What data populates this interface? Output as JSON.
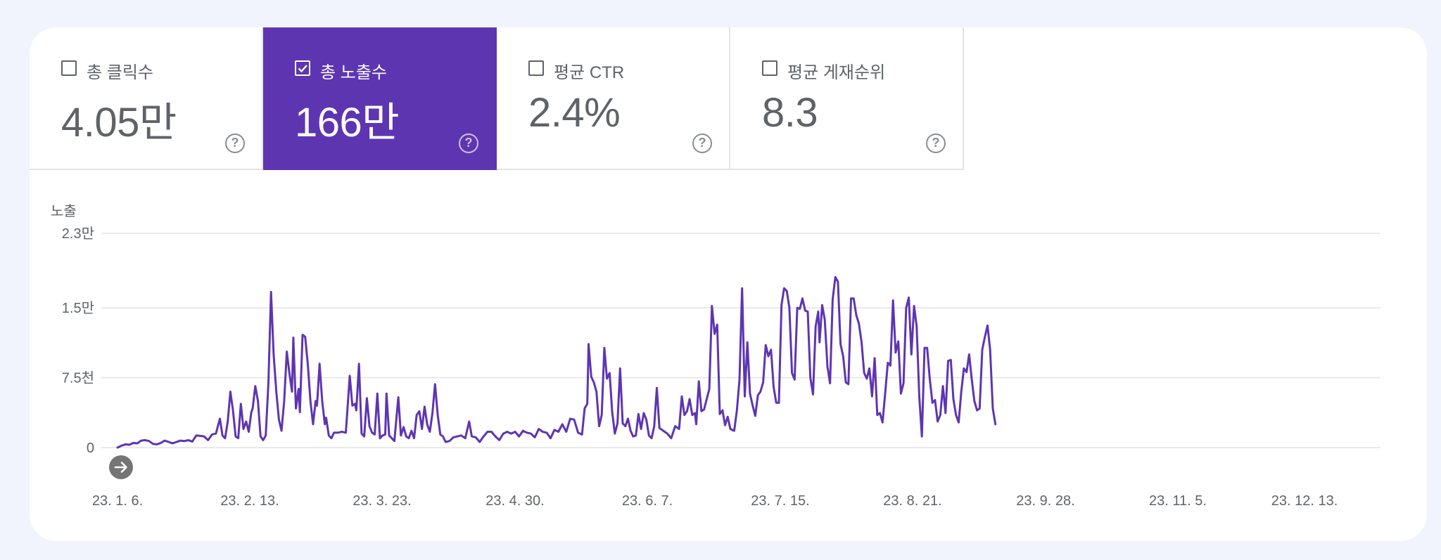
{
  "metrics": [
    {
      "label": "총 클릭수",
      "value": "4.05만",
      "checked": false
    },
    {
      "label": "총 노출수",
      "value": "166만",
      "checked": true
    },
    {
      "label": "평균 CTR",
      "value": "2.4%",
      "checked": false
    },
    {
      "label": "평균 게재순위",
      "value": "8.3",
      "checked": false
    }
  ],
  "help_glyph": "?",
  "colors": {
    "accent": "#5e35b1",
    "line": "#5e35b1",
    "background": "#f1f4fd"
  },
  "icons": {
    "checkbox_checked": "checkbox-checked-icon",
    "checkbox_unchecked": "checkbox-unchecked-icon",
    "help": "help-circle-icon",
    "navigate": "arrow-right-circle-icon"
  },
  "chart_data": {
    "type": "line",
    "ylabel": "노출",
    "ylim": [
      0,
      23000
    ],
    "yticks": [
      {
        "value": 0,
        "label": "0"
      },
      {
        "value": 7500,
        "label": "7.5천"
      },
      {
        "value": 15000,
        "label": "1.5만"
      },
      {
        "value": 23000,
        "label": "2.3만"
      }
    ],
    "xticks": [
      "23. 1. 6.",
      "23. 2. 13.",
      "23. 3. 23.",
      "23. 4. 30.",
      "23. 6. 7.",
      "23. 7. 15.",
      "23. 8. 21.",
      "23. 9. 28.",
      "23. 11. 5.",
      "23. 12. 13."
    ],
    "grid": true,
    "series": [
      {
        "points": [
          [
            0,
            0
          ],
          [
            3,
            200
          ],
          [
            6,
            350
          ],
          [
            9,
            300
          ],
          [
            12,
            500
          ],
          [
            15,
            450
          ],
          [
            18,
            750
          ],
          [
            21,
            800
          ],
          [
            24,
            700
          ],
          [
            27,
            400
          ],
          [
            30,
            350
          ],
          [
            33,
            500
          ],
          [
            36,
            750
          ],
          [
            39,
            600
          ],
          [
            42,
            450
          ],
          [
            45,
            600
          ],
          [
            48,
            750
          ],
          [
            51,
            700
          ],
          [
            54,
            800
          ],
          [
            57,
            650
          ],
          [
            60,
            1300
          ],
          [
            63,
            1250
          ],
          [
            66,
            1200
          ],
          [
            69,
            800
          ],
          [
            72,
            1400
          ],
          [
            75,
            1500
          ],
          [
            78,
            3100
          ],
          [
            80,
            1300
          ],
          [
            82,
            1000
          ],
          [
            84,
            2800
          ],
          [
            86,
            6000
          ],
          [
            88,
            4000
          ],
          [
            90,
            1200
          ],
          [
            92,
            1000
          ],
          [
            94,
            4700
          ],
          [
            96,
            2000
          ],
          [
            98,
            2800
          ],
          [
            100,
            1700
          ],
          [
            102,
            3800
          ],
          [
            103,
            4200
          ],
          [
            105,
            6600
          ],
          [
            107,
            5000
          ],
          [
            109,
            1200
          ],
          [
            111,
            800
          ],
          [
            113,
            1300
          ],
          [
            115,
            7000
          ],
          [
            117,
            16700
          ],
          [
            119,
            10000
          ],
          [
            121,
            6000
          ],
          [
            123,
            3000
          ],
          [
            125,
            1800
          ],
          [
            127,
            5000
          ],
          [
            129,
            10300
          ],
          [
            131,
            8000
          ],
          [
            133,
            6000
          ],
          [
            134,
            11800
          ],
          [
            136,
            4200
          ],
          [
            138,
            6300
          ],
          [
            139,
            3800
          ],
          [
            141,
            12100
          ],
          [
            143,
            11900
          ],
          [
            145,
            9000
          ],
          [
            147,
            5000
          ],
          [
            149,
            2500
          ],
          [
            151,
            5000
          ],
          [
            152,
            4500
          ],
          [
            154,
            9000
          ],
          [
            156,
            5000
          ],
          [
            158,
            2500
          ],
          [
            159,
            3200
          ],
          [
            161,
            1300
          ],
          [
            163,
            1000
          ],
          [
            165,
            1600
          ],
          [
            168,
            1600
          ],
          [
            171,
            1700
          ],
          [
            174,
            1600
          ],
          [
            177,
            7700
          ],
          [
            179,
            4500
          ],
          [
            181,
            4700
          ],
          [
            182,
            4000
          ],
          [
            184,
            9000
          ],
          [
            186,
            1500
          ],
          [
            188,
            1200
          ],
          [
            190,
            5300
          ],
          [
            192,
            2300
          ],
          [
            194,
            1600
          ],
          [
            196,
            1400
          ],
          [
            198,
            5800
          ],
          [
            200,
            1000
          ],
          [
            202,
            1300
          ],
          [
            204,
            1400
          ],
          [
            205,
            5800
          ],
          [
            207,
            1300
          ],
          [
            209,
            1000
          ],
          [
            211,
            700
          ],
          [
            214,
            5400
          ],
          [
            216,
            1300
          ],
          [
            218,
            2200
          ],
          [
            220,
            1200
          ],
          [
            222,
            1000
          ],
          [
            224,
            1800
          ],
          [
            226,
            1000
          ],
          [
            228,
            3500
          ],
          [
            230,
            3900
          ],
          [
            232,
            2000
          ],
          [
            234,
            4400
          ],
          [
            236,
            2500
          ],
          [
            238,
            1700
          ],
          [
            240,
            3700
          ],
          [
            242,
            6800
          ],
          [
            244,
            3500
          ],
          [
            246,
            1400
          ],
          [
            248,
            1200
          ],
          [
            250,
            600
          ],
          [
            253,
            700
          ],
          [
            256,
            1100
          ],
          [
            259,
            1200
          ],
          [
            262,
            1300
          ],
          [
            265,
            1000
          ],
          [
            268,
            2800
          ],
          [
            270,
            1200
          ],
          [
            273,
            1100
          ],
          [
            276,
            600
          ],
          [
            279,
            1200
          ],
          [
            282,
            1700
          ],
          [
            285,
            1700
          ],
          [
            288,
            1200
          ],
          [
            291,
            800
          ],
          [
            294,
            1500
          ],
          [
            297,
            1700
          ],
          [
            300,
            1500
          ],
          [
            303,
            1700
          ],
          [
            306,
            1200
          ],
          [
            309,
            1800
          ],
          [
            312,
            1600
          ],
          [
            315,
            1500
          ],
          [
            318,
            1100
          ],
          [
            321,
            2000
          ],
          [
            324,
            1700
          ],
          [
            327,
            1600
          ],
          [
            330,
            1000
          ],
          [
            333,
            1900
          ],
          [
            336,
            1700
          ],
          [
            339,
            2500
          ],
          [
            342,
            1700
          ],
          [
            345,
            3100
          ],
          [
            348,
            3000
          ],
          [
            351,
            1600
          ],
          [
            354,
            1400
          ],
          [
            356,
            4200
          ],
          [
            358,
            4700
          ],
          [
            359,
            11100
          ],
          [
            361,
            7600
          ],
          [
            363,
            7000
          ],
          [
            365,
            6000
          ],
          [
            367,
            2300
          ],
          [
            369,
            3500
          ],
          [
            371,
            10700
          ],
          [
            373,
            7400
          ],
          [
            375,
            8000
          ],
          [
            377,
            3800
          ],
          [
            379,
            1500
          ],
          [
            381,
            2600
          ],
          [
            383,
            8500
          ],
          [
            385,
            2600
          ],
          [
            387,
            2300
          ],
          [
            389,
            3100
          ],
          [
            391,
            1800
          ],
          [
            393,
            1200
          ],
          [
            395,
            1300
          ],
          [
            397,
            3600
          ],
          [
            399,
            2000
          ],
          [
            401,
            3700
          ],
          [
            403,
            3000
          ],
          [
            405,
            1300
          ],
          [
            407,
            1000
          ],
          [
            409,
            2300
          ],
          [
            411,
            6400
          ],
          [
            413,
            2100
          ],
          [
            416,
            1800
          ],
          [
            419,
            1500
          ],
          [
            422,
            1000
          ],
          [
            425,
            2300
          ],
          [
            428,
            2000
          ],
          [
            430,
            5500
          ],
          [
            432,
            3500
          ],
          [
            434,
            3900
          ],
          [
            436,
            5200
          ],
          [
            438,
            3500
          ],
          [
            440,
            3700
          ],
          [
            441,
            2500
          ],
          [
            443,
            7100
          ],
          [
            445,
            3900
          ],
          [
            447,
            4100
          ],
          [
            449,
            5200
          ],
          [
            451,
            6300
          ],
          [
            453,
            15200
          ],
          [
            455,
            12200
          ],
          [
            457,
            13200
          ],
          [
            459,
            3600
          ],
          [
            461,
            4000
          ],
          [
            463,
            2400
          ],
          [
            465,
            3300
          ],
          [
            467,
            2000
          ],
          [
            470,
            1800
          ],
          [
            472,
            4000
          ],
          [
            474,
            7300
          ],
          [
            476,
            17100
          ],
          [
            478,
            5500
          ],
          [
            480,
            11300
          ],
          [
            482,
            5800
          ],
          [
            484,
            4500
          ],
          [
            486,
            3400
          ],
          [
            488,
            5600
          ],
          [
            490,
            6000
          ],
          [
            492,
            7000
          ],
          [
            494,
            11000
          ],
          [
            496,
            9800
          ],
          [
            498,
            10500
          ],
          [
            500,
            6500
          ],
          [
            502,
            4800
          ],
          [
            504,
            4800
          ],
          [
            506,
            15300
          ],
          [
            508,
            17100
          ],
          [
            510,
            16800
          ],
          [
            512,
            15000
          ],
          [
            514,
            8000
          ],
          [
            516,
            7300
          ],
          [
            518,
            15000
          ],
          [
            520,
            14900
          ],
          [
            522,
            16000
          ],
          [
            524,
            14700
          ],
          [
            526,
            14600
          ],
          [
            528,
            7500
          ],
          [
            530,
            5700
          ],
          [
            532,
            13000
          ],
          [
            534,
            14600
          ],
          [
            535,
            11300
          ],
          [
            537,
            15300
          ],
          [
            539,
            13700
          ],
          [
            541,
            8700
          ],
          [
            543,
            6900
          ],
          [
            545,
            15900
          ],
          [
            547,
            18300
          ],
          [
            549,
            17800
          ],
          [
            551,
            11100
          ],
          [
            553,
            9800
          ],
          [
            555,
            7000
          ],
          [
            557,
            6800
          ],
          [
            559,
            16000
          ],
          [
            561,
            16000
          ],
          [
            563,
            14200
          ],
          [
            565,
            13300
          ],
          [
            567,
            11300
          ],
          [
            569,
            8000
          ],
          [
            571,
            7400
          ],
          [
            573,
            8500
          ],
          [
            575,
            5500
          ],
          [
            577,
            9600
          ],
          [
            579,
            3500
          ],
          [
            581,
            3700
          ],
          [
            583,
            2700
          ],
          [
            585,
            5800
          ],
          [
            587,
            9100
          ],
          [
            589,
            8800
          ],
          [
            591,
            15800
          ],
          [
            593,
            10200
          ],
          [
            595,
            11400
          ],
          [
            597,
            5800
          ],
          [
            599,
            6900
          ],
          [
            601,
            15000
          ],
          [
            603,
            16100
          ],
          [
            605,
            10000
          ],
          [
            607,
            15200
          ],
          [
            609,
            13000
          ],
          [
            611,
            5500
          ],
          [
            613,
            1200
          ],
          [
            615,
            10700
          ],
          [
            617,
            10700
          ],
          [
            619,
            7400
          ],
          [
            621,
            4800
          ],
          [
            623,
            5100
          ],
          [
            625,
            2800
          ],
          [
            627,
            3500
          ],
          [
            629,
            6600
          ],
          [
            631,
            3700
          ],
          [
            633,
            9300
          ],
          [
            635,
            9400
          ],
          [
            637,
            5200
          ],
          [
            639,
            3500
          ],
          [
            641,
            2700
          ],
          [
            643,
            6000
          ],
          [
            645,
            8500
          ],
          [
            647,
            8100
          ],
          [
            649,
            10000
          ],
          [
            651,
            7300
          ],
          [
            653,
            5000
          ],
          [
            655,
            4000
          ],
          [
            657,
            4200
          ],
          [
            659,
            10500
          ],
          [
            661,
            11900
          ],
          [
            663,
            13100
          ],
          [
            665,
            10500
          ],
          [
            667,
            4200
          ],
          [
            669,
            2500
          ]
        ]
      }
    ]
  }
}
